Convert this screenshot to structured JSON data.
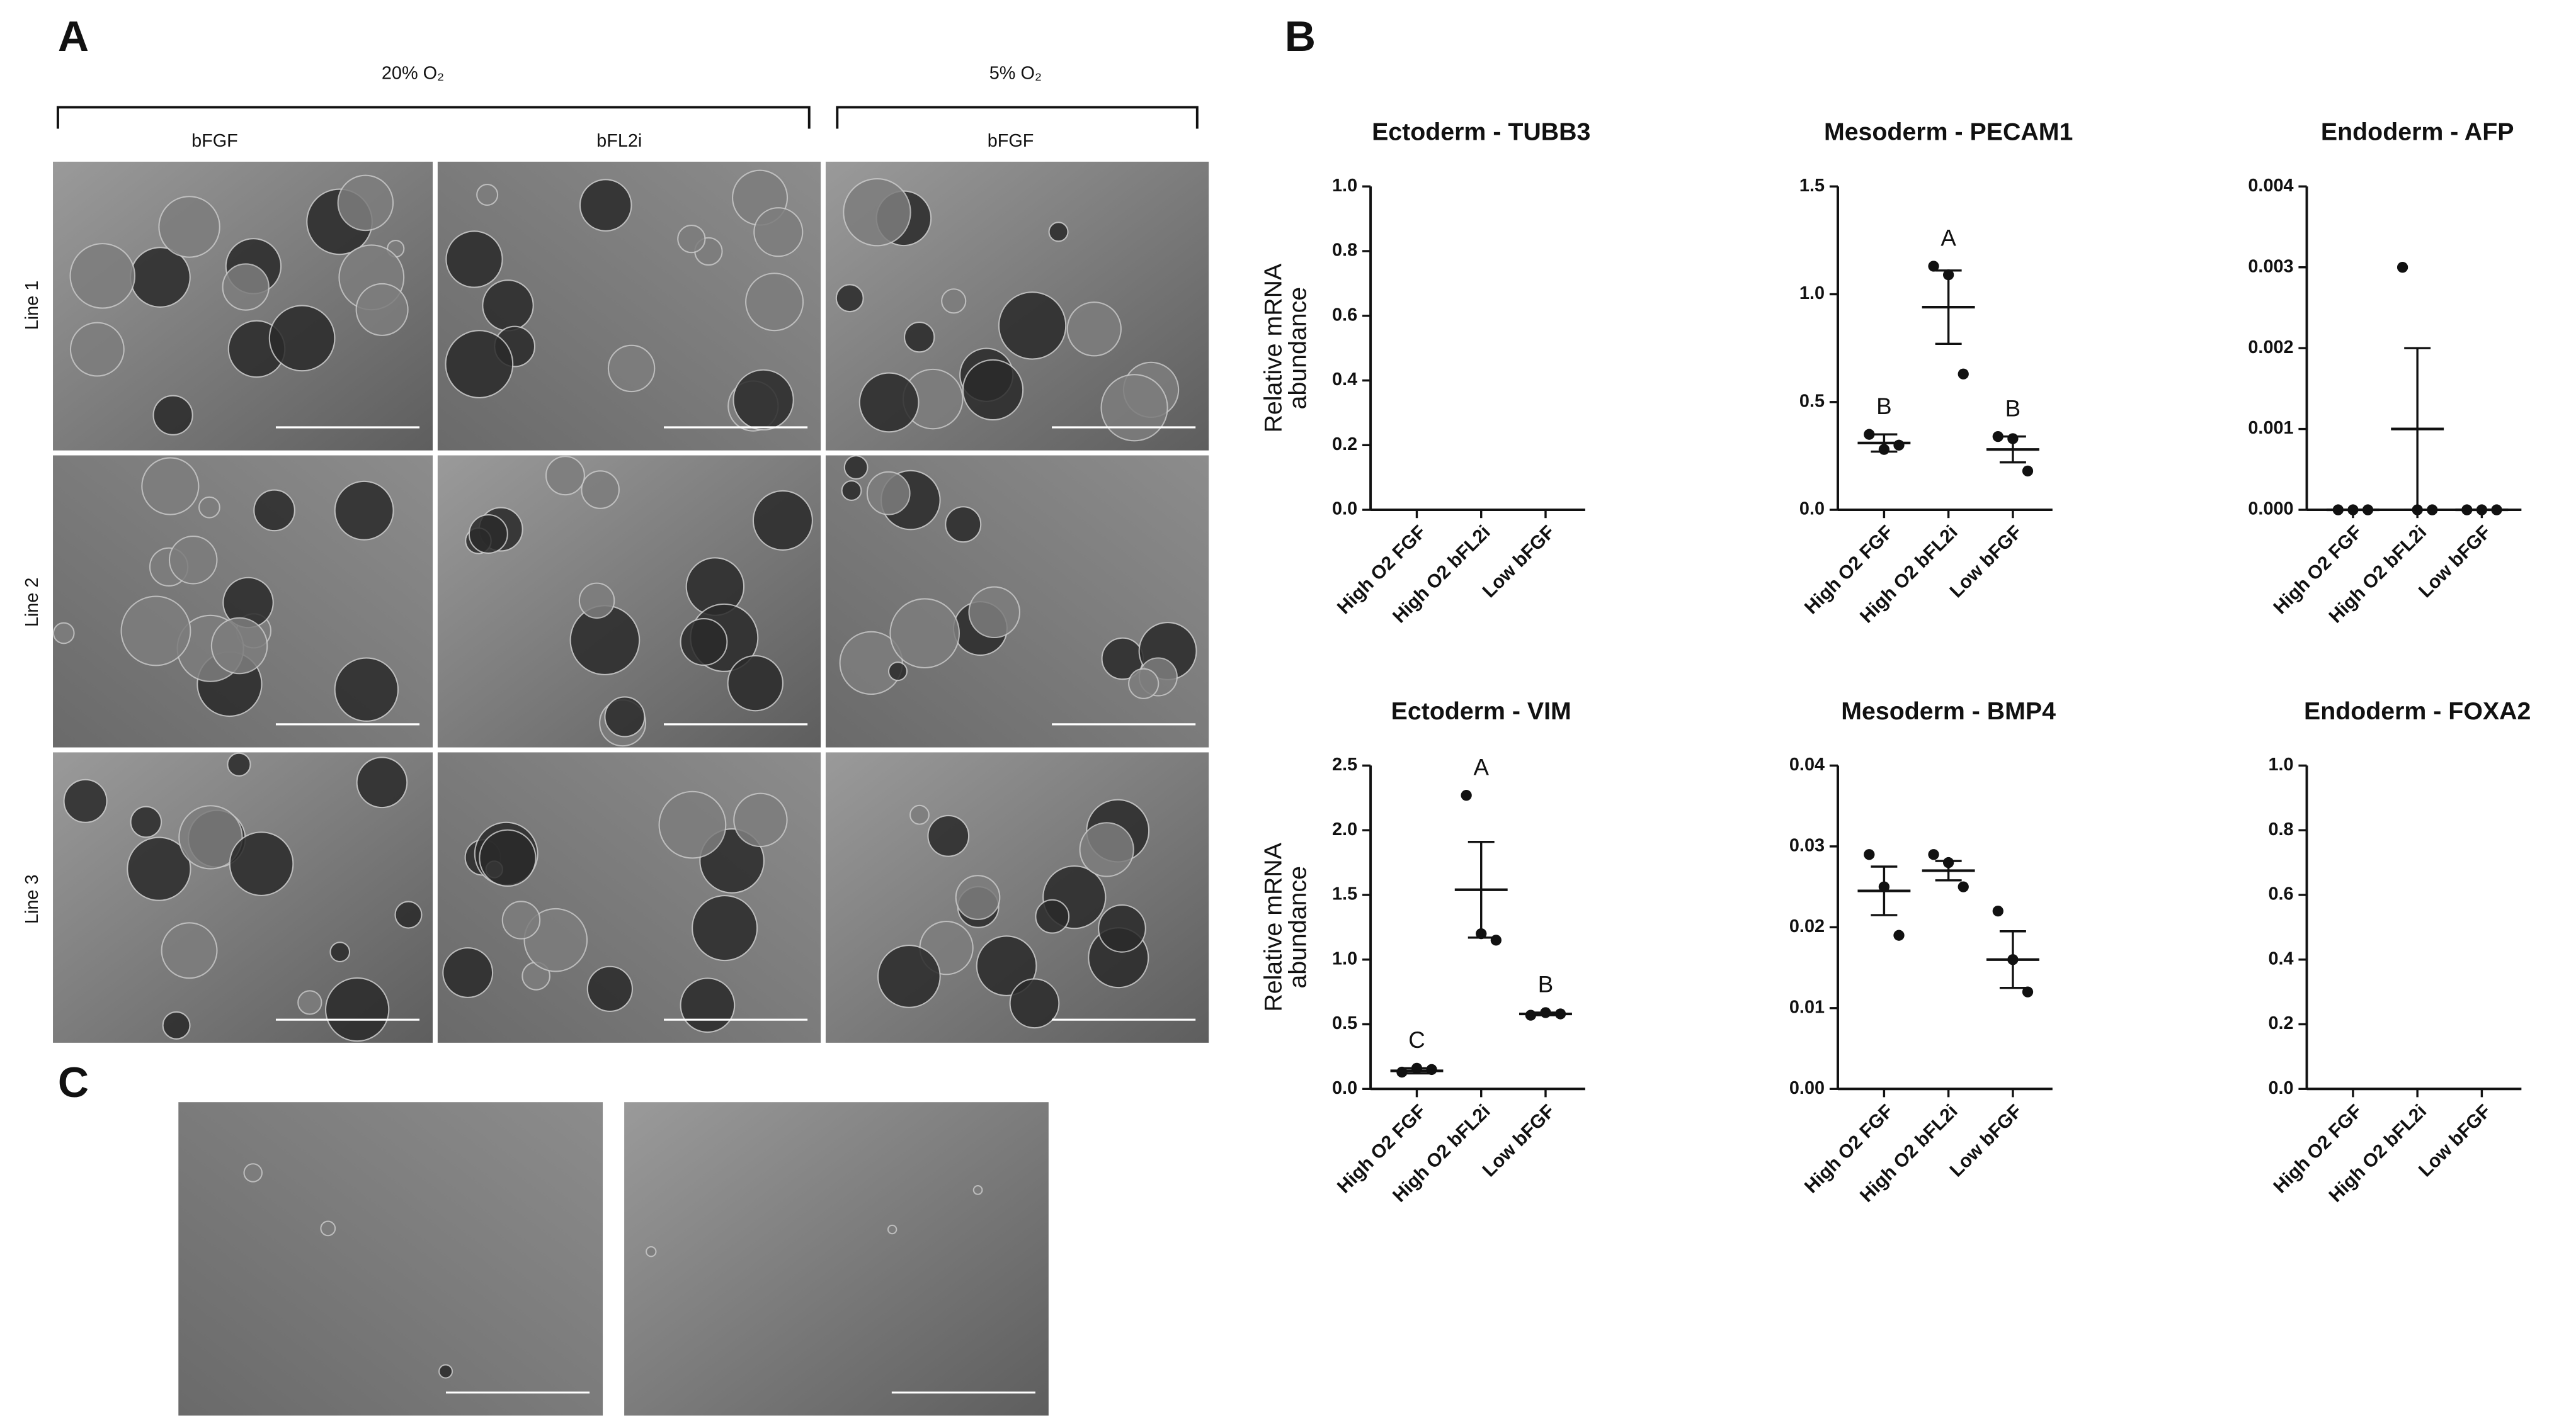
{
  "figure": {
    "panel_labels": [
      "A",
      "B",
      "C"
    ],
    "oxygen": [
      "20% O₂",
      "5% O₂"
    ],
    "conditions": [
      "bFGF",
      "bFL2i",
      "bFGF"
    ],
    "lines": [
      "Line 1",
      "Line 2",
      "Line 3"
    ]
  },
  "chart_data": [
    {
      "type": "scatter",
      "title": "Ectoderm - TUBB3",
      "ylabel": [
        "Relative mRNA",
        "abundance"
      ],
      "categories": [
        "High O2 FGF",
        "High O2 bFL2i",
        "Low bFGF"
      ],
      "ylim": [
        0,
        1.0
      ],
      "yticks": [
        {
          "value": 0,
          "label": "0.0"
        },
        0.2,
        0.4,
        0.6,
        0.8,
        {
          "value": 1,
          "label": "1.0"
        }
      ]
    },
    {
      "type": "scatter",
      "title": "Mesoderm - PECAM1",
      "categories": [
        "High O2 FGF",
        "High O2 bFL2i",
        "Low bFGF"
      ],
      "points": [
        [
          0.35,
          0.28,
          0.3
        ],
        [
          1.13,
          1.09,
          0.63
        ],
        [
          0.34,
          0.33,
          0.18
        ]
      ],
      "values": [
        0.31,
        0.94,
        0.28
      ],
      "errors": [
        0.04,
        0.17,
        0.06
      ],
      "letters": [
        "B",
        "A",
        "B"
      ],
      "ylim": [
        0,
        1.5
      ],
      "yticks": [
        {
          "value": 0,
          "label": "0.0"
        },
        0.5,
        {
          "value": 1,
          "label": "1.0"
        },
        1.5
      ]
    },
    {
      "type": "scatter",
      "title": "Endoderm - AFP",
      "categories": [
        "High O2 FGF",
        "High O2 bFL2i",
        "Low bFGF"
      ],
      "points": [
        [
          0,
          0,
          0
        ],
        [
          0.003,
          0,
          0
        ],
        [
          0,
          0,
          0
        ]
      ],
      "values": [
        0,
        0.001,
        0
      ],
      "errors": [
        0,
        0.001,
        0
      ],
      "ylim": [
        0,
        0.004
      ],
      "yticks": [
        {
          "value": 0,
          "label": "0.000"
        },
        {
          "value": 0.001,
          "label": "0.001"
        },
        {
          "value": 0.002,
          "label": "0.002"
        },
        {
          "value": 0.003,
          "label": "0.003"
        },
        {
          "value": 0.004,
          "label": "0.004"
        }
      ]
    },
    {
      "type": "scatter",
      "title": "Ectoderm - VIM",
      "ylabel": [
        "Relative mRNA",
        "abundance"
      ],
      "categories": [
        "High O2 FGF",
        "High O2 bFL2i",
        "Low bFGF"
      ],
      "points": [
        [
          0.13,
          0.16,
          0.15
        ],
        [
          2.27,
          1.2,
          1.15
        ],
        [
          0.57,
          0.59,
          0.58
        ]
      ],
      "values": [
        0.14,
        1.54,
        0.58
      ],
      "errors": [
        0.02,
        0.37,
        0.01
      ],
      "letters": [
        "C",
        "A",
        "B"
      ],
      "ylim": [
        0,
        2.5
      ],
      "yticks": [
        {
          "value": 0,
          "label": "0.0"
        },
        0.5,
        {
          "value": 1,
          "label": "1.0"
        },
        1.5,
        {
          "value": 2,
          "label": "2.0"
        },
        2.5
      ]
    },
    {
      "type": "scatter",
      "title": "Mesoderm - BMP4",
      "categories": [
        "High O2 FGF",
        "High O2 bFL2i",
        "Low bFGF"
      ],
      "points": [
        [
          0.029,
          0.025,
          0.019
        ],
        [
          0.029,
          0.028,
          0.025
        ],
        [
          0.022,
          0.016,
          0.012
        ]
      ],
      "values": [
        0.0245,
        0.027,
        0.016
      ],
      "errors": [
        0.003,
        0.0012,
        0.0035
      ],
      "ylim": [
        0,
        0.04
      ],
      "yticks": [
        {
          "value": 0,
          "label": "0.00"
        },
        0.01,
        0.02,
        0.03,
        0.04
      ]
    },
    {
      "type": "scatter",
      "title": "Endoderm - FOXA2",
      "categories": [
        "High O2 FGF",
        "High O2 bFL2i",
        "Low bFGF"
      ],
      "ylim": [
        0,
        1.0
      ],
      "yticks": [
        {
          "value": 0,
          "label": "0.0"
        },
        0.2,
        0.4,
        0.6,
        0.8,
        {
          "value": 1,
          "label": "1.0"
        }
      ]
    }
  ]
}
